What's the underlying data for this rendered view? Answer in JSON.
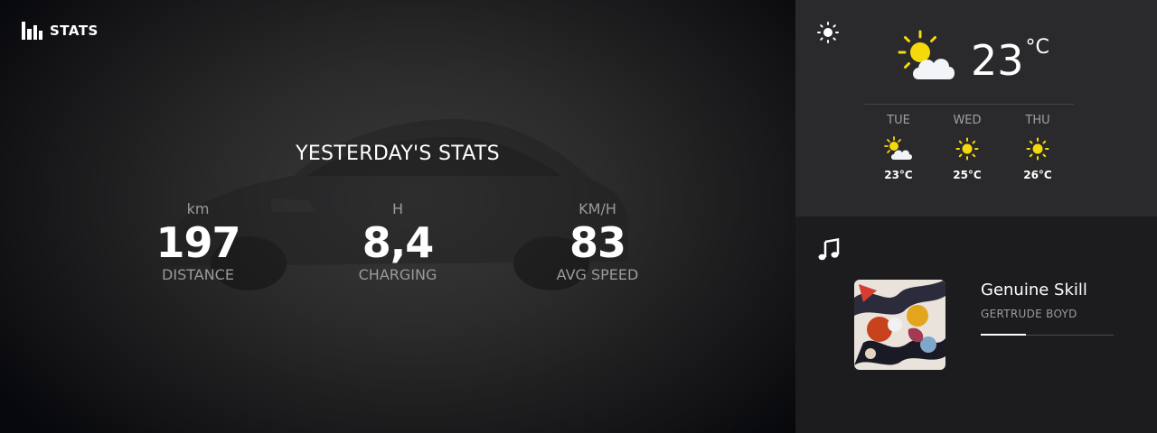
{
  "stats": {
    "header_label": "STATS",
    "section_title": "YESTERDAY'S STATS",
    "metrics": [
      {
        "unit": "km",
        "value": "197",
        "label": "DISTANCE"
      },
      {
        "unit": "H",
        "value": "8,4",
        "label": "CHARGING"
      },
      {
        "unit": "KM/H",
        "value": "83",
        "label": "AVG SPEED"
      }
    ]
  },
  "weather": {
    "current_temp": "23",
    "current_unit": "°C",
    "current_icon": "partly-cloudy-icon",
    "forecast": [
      {
        "day": "TUE",
        "temp": "23°C",
        "icon": "partly-cloudy-icon"
      },
      {
        "day": "WED",
        "temp": "25°C",
        "icon": "sun-icon"
      },
      {
        "day": "THU",
        "temp": "26°C",
        "icon": "sun-icon"
      }
    ]
  },
  "music": {
    "title": "Genuine Skill",
    "artist": "GERTRUDE BOYD",
    "progress": 0.34
  },
  "colors": {
    "sun": "#f5d90a",
    "accent": "#ffffff",
    "muted": "#9a9a9a"
  }
}
